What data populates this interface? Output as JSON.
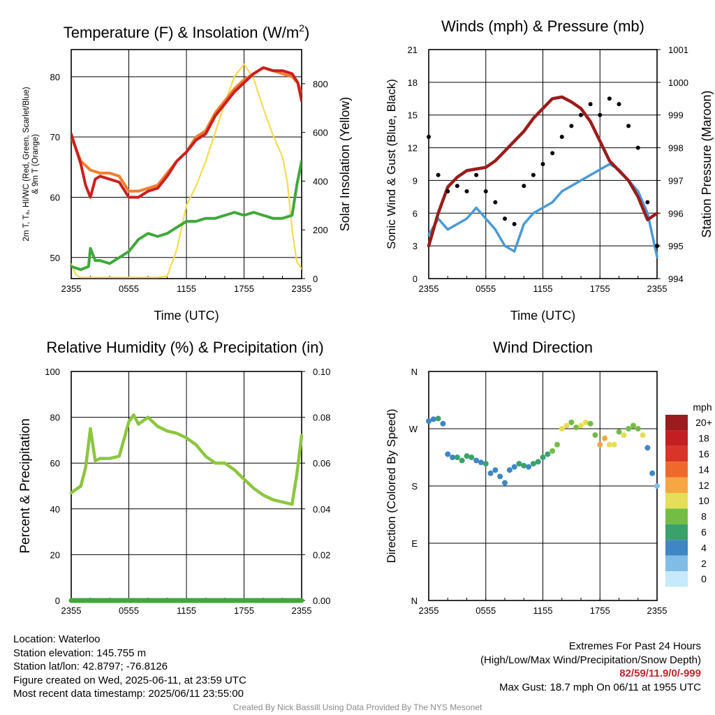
{
  "chart_data": [
    {
      "type": "line",
      "title": "Temperature (F) & Insolation (W/m²)",
      "title_main": "Temperature (F) & Insolation (W/m",
      "title_sup": "2",
      "title_end": ")",
      "xlabel": "Time (UTC)",
      "ylabel_left_line1": "2m T, Tₐ, HI/WC (Red, Green, Scarlet/Blue)",
      "ylabel_left_line2": "& 9m T (Orange)",
      "ylabel_right": "Solar Insolation (Yellow)",
      "x_ticks": [
        "2355",
        "0555",
        "1155",
        "1755",
        "2355"
      ],
      "xlim_hours": [
        0,
        24
      ],
      "ylim_left": [
        46.5,
        84.5
      ],
      "ylim_right": [
        0,
        940
      ],
      "y_ticks_left": [
        50,
        60,
        70,
        80
      ],
      "y_ticks_right": [
        0,
        200,
        400,
        600,
        800
      ],
      "grid": true,
      "series": [
        {
          "color": "#f07e2e",
          "x": [
            0,
            1,
            2,
            3,
            4,
            5,
            6,
            7,
            8,
            9,
            10,
            11,
            12,
            13,
            14,
            15,
            16,
            17,
            18,
            19,
            20,
            21,
            22,
            23,
            23.6,
            24
          ],
          "values": [
            70,
            66,
            64.5,
            64,
            64,
            63.5,
            61,
            61,
            61.5,
            62,
            64,
            66,
            67.5,
            70,
            71,
            74,
            76,
            78,
            79.5,
            80.5,
            81.5,
            81,
            80.5,
            80,
            79,
            77
          ]
        },
        {
          "color": "#cc1f1f",
          "x": [
            0,
            1,
            1.5,
            2,
            2.5,
            3,
            4,
            5,
            6,
            7,
            8,
            9,
            10,
            11,
            12,
            13,
            14,
            15,
            16,
            17,
            18,
            19,
            20,
            21,
            22,
            23,
            23.6,
            24
          ],
          "values": [
            70.5,
            65.5,
            62,
            60,
            63,
            63.5,
            63,
            62.5,
            60,
            60,
            61,
            61.5,
            63.5,
            66,
            67.5,
            69.5,
            70.5,
            73.5,
            75.5,
            77.5,
            79,
            80.5,
            81.5,
            81,
            81,
            80.5,
            79,
            76
          ]
        },
        {
          "color": "#3ea83a",
          "x": [
            0,
            1,
            1.8,
            2,
            2.5,
            3,
            4,
            5,
            6,
            7,
            8,
            9,
            10,
            11,
            12,
            13,
            14,
            15,
            16,
            17,
            18,
            19,
            20,
            21,
            22,
            23,
            23.5,
            24
          ],
          "values": [
            48.5,
            48,
            48.5,
            51.5,
            49.5,
            49.5,
            49,
            50,
            51,
            53,
            54,
            53.5,
            54,
            55,
            56,
            56,
            56.5,
            56.5,
            57,
            57.5,
            57,
            57.5,
            57,
            56.5,
            56.5,
            57,
            62,
            66
          ]
        },
        {
          "color": "#f5dc50",
          "x": [
            0,
            0.5,
            1,
            2,
            3,
            4,
            5,
            6,
            7,
            8,
            9,
            10,
            11,
            12,
            13,
            14,
            15,
            16,
            17,
            18,
            19,
            20,
            21,
            22,
            22.5,
            23,
            23.5,
            24
          ],
          "values": [
            60,
            15,
            5,
            5,
            5,
            5,
            5,
            5,
            5,
            5,
            5,
            10,
            120,
            300,
            380,
            480,
            600,
            720,
            830,
            880,
            820,
            700,
            590,
            500,
            400,
            200,
            70,
            40
          ]
        }
      ]
    },
    {
      "type": "line",
      "title": "Winds (mph) & Pressure (mb)",
      "xlabel": "Time (UTC)",
      "ylabel_left": "Sonic Wind & Gust (Blue, Black)",
      "ylabel_right": "Station Pressure (Maroon)",
      "x_ticks": [
        "2355",
        "0555",
        "1155",
        "1755",
        "2355"
      ],
      "xlim_hours": [
        0,
        24
      ],
      "ylim_left": [
        0,
        21
      ],
      "ylim_right": [
        994,
        1001
      ],
      "y_ticks_left": [
        0,
        3,
        6,
        9,
        12,
        15,
        18,
        21
      ],
      "y_ticks_right": [
        994,
        995,
        996,
        997,
        998,
        999,
        1000,
        1001
      ],
      "grid": true,
      "series": [
        {
          "color": "#9b1c1c",
          "x": [
            0,
            1,
            2,
            3,
            4,
            5,
            6,
            7,
            8,
            9,
            10,
            11,
            12,
            13,
            14,
            15,
            16,
            17,
            18,
            19,
            20,
            21,
            22,
            23,
            24
          ],
          "values": [
            995,
            996,
            996.8,
            997.1,
            997.3,
            997.35,
            997.4,
            997.6,
            997.9,
            998.2,
            998.5,
            998.9,
            999.2,
            999.5,
            999.55,
            999.4,
            999.2,
            998.8,
            998.2,
            997.6,
            997.3,
            997,
            996.5,
            995.8,
            996
          ]
        },
        {
          "color": "#4a9ad6",
          "x": [
            0,
            1,
            2,
            3,
            4,
            5,
            6,
            7,
            8,
            9,
            10,
            11,
            12,
            13,
            14,
            15,
            16,
            17,
            18,
            19,
            20,
            21,
            22,
            23,
            24
          ],
          "values": [
            4,
            5.5,
            4.5,
            5,
            5.5,
            6.5,
            5.5,
            4.5,
            3,
            2.5,
            5,
            6,
            6.5,
            7,
            8,
            8.5,
            9,
            9.5,
            10,
            10.5,
            10,
            9,
            8,
            6,
            2
          ]
        },
        {
          "color": "#000000",
          "mode": "markers",
          "x": [
            0,
            1,
            2,
            3,
            4,
            5,
            6,
            7,
            8,
            9,
            10,
            11,
            12,
            13,
            14,
            15,
            16,
            17,
            18,
            19,
            20,
            21,
            22,
            23,
            24
          ],
          "values": [
            13,
            9.5,
            8,
            8.5,
            8,
            9.5,
            8,
            7,
            5.5,
            5,
            8.5,
            9.5,
            10.5,
            11.5,
            13,
            14,
            15,
            16,
            15,
            16.5,
            16,
            14,
            12,
            7,
            3
          ]
        }
      ]
    },
    {
      "type": "line",
      "title": "Relative Humidity (%) & Precipitation (in)",
      "ylabel_left": "Percent & Precipitation",
      "x_ticks": [
        "2355",
        "0555",
        "1155",
        "1755",
        "2355"
      ],
      "xlim_hours": [
        0,
        24
      ],
      "ylim_left": [
        0,
        100
      ],
      "ylim_right": [
        0,
        0.1
      ],
      "y_ticks_left": [
        0,
        20,
        40,
        60,
        80,
        100
      ],
      "y_ticks_right": [
        "0.00",
        "0.02",
        "0.04",
        "0.06",
        "0.08",
        "0.10"
      ],
      "grid": true,
      "series": [
        {
          "color": "#8cc63f",
          "x": [
            0,
            1,
            1.5,
            2,
            2.5,
            3,
            4,
            5,
            6,
            6.5,
            7,
            8,
            9,
            10,
            11,
            12,
            13,
            14,
            15,
            16,
            17,
            18,
            19,
            20,
            21,
            22,
            23,
            23.5,
            24
          ],
          "values": [
            47,
            50,
            58,
            75,
            61,
            62,
            62,
            63,
            78,
            81,
            77,
            80,
            76,
            74,
            73,
            71,
            68,
            63,
            60,
            60,
            57,
            53,
            49,
            46,
            44,
            43,
            42,
            55,
            72
          ]
        },
        {
          "color": "#3ea83a",
          "x": [
            0,
            24
          ],
          "values": [
            0,
            0
          ]
        }
      ]
    },
    {
      "type": "scatter",
      "title": "Wind Direction",
      "ylabel_left": "Direction (Colored By Speed)",
      "x_ticks": [
        "2355",
        "0555",
        "1155",
        "1755",
        "2355"
      ],
      "y_ticks_left": [
        "N",
        "E",
        "S",
        "W",
        "N"
      ],
      "xlim_hours": [
        0,
        24
      ],
      "ylim_degrees": [
        0,
        360
      ],
      "grid": true,
      "colorbar": {
        "title": "mph",
        "levels": [
          "0",
          "2",
          "4",
          "6",
          "8",
          "10",
          "12",
          "14",
          "16",
          "18",
          "20+"
        ],
        "colors": [
          "#c6e9fb",
          "#7fbde6",
          "#3f86c4",
          "#3aa16b",
          "#74bd45",
          "#e6dd58",
          "#f6a744",
          "#ee6a2c",
          "#d93428",
          "#c31f22",
          "#9b1b1f"
        ]
      },
      "series": [
        {
          "x": [
            0,
            0.5,
            1,
            1.5,
            2,
            2.5,
            3,
            3.5,
            4,
            4.5,
            5,
            5.5,
            6,
            6.5,
            7,
            7.5,
            8,
            8.5,
            9,
            9.5,
            10,
            10.5,
            11,
            11.5,
            12,
            12.5,
            13,
            13.5,
            14,
            14.5,
            15,
            15.5,
            16,
            16.5,
            17,
            17.5,
            18,
            18.5,
            19,
            19.5,
            20,
            20.5,
            21,
            21.5,
            22,
            22.5,
            23,
            23.5,
            24
          ],
          "values": [
            282,
            285,
            286,
            278,
            230,
            225,
            225,
            220,
            227,
            225,
            220,
            217,
            215,
            200,
            205,
            195,
            185,
            205,
            210,
            215,
            212,
            210,
            215,
            218,
            225,
            230,
            235,
            245,
            270,
            275,
            280,
            272,
            275,
            280,
            278,
            260,
            245,
            255,
            245,
            245,
            265,
            260,
            270,
            275,
            270,
            260,
            240,
            200,
            180
          ],
          "speeds": [
            4,
            4,
            5,
            3,
            4,
            4,
            5,
            5,
            6,
            5,
            4,
            4,
            5,
            3,
            3,
            4,
            3,
            4,
            4,
            5,
            5,
            4,
            5,
            6,
            6,
            6,
            7,
            8,
            9,
            9,
            8,
            8,
            10,
            9,
            8,
            8,
            11,
            12,
            10,
            9,
            8,
            9,
            8,
            8,
            8,
            9,
            4,
            3,
            2
          ]
        }
      ]
    }
  ],
  "info": {
    "location": "Location: Waterloo",
    "elevation": "Station elevation: 145.755 m",
    "latlon": "Station lat/lon: 42.8797; -76.8126",
    "created": "Figure created on Wed, 2025-06-11, at 23:59 UTC",
    "recent": "Most recent data timestamp: 2025/06/11 23:55:00"
  },
  "extremes": {
    "heading": "Extremes For Past 24 Hours",
    "subheading": "(High/Low/Max Wind/Precipitation/Snow Depth)",
    "values": "82/59/11.9/0/-999",
    "max_gust": "Max Gust: 18.7 mph On 06/11 at 1955 UTC"
  },
  "credit": "Created By Nick Bassill Using Data Provided By The NYS Mesonet"
}
